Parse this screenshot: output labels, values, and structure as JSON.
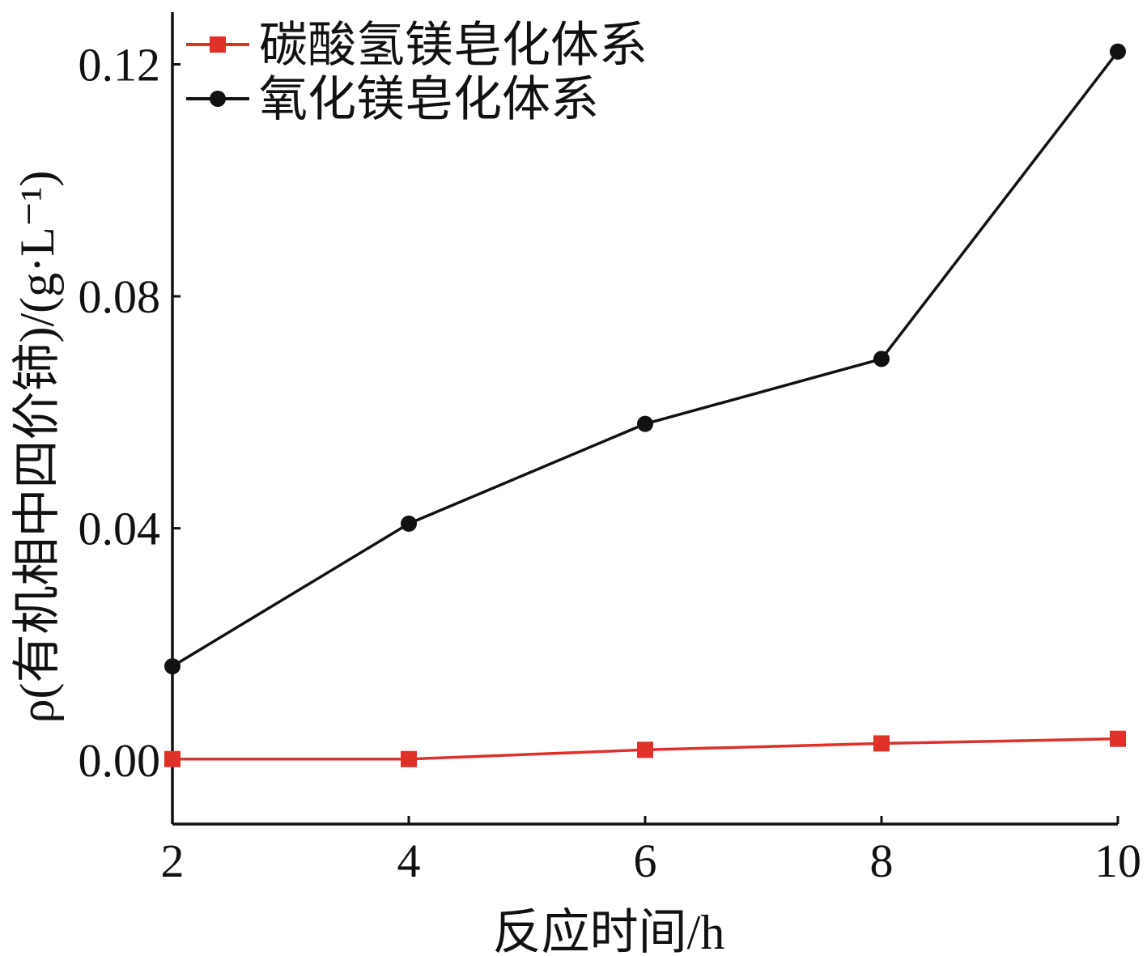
{
  "chart_data": {
    "type": "line",
    "xlabel": "反应时间/h",
    "ylabel": "ρ(有机相中四价铈)/(g·L⁻¹)",
    "x": [
      2,
      4,
      6,
      8,
      10
    ],
    "xlim": [
      2,
      10
    ],
    "ylim": [
      -0.011,
      0.129
    ],
    "xticks": [
      "2",
      "4",
      "6",
      "8",
      "10"
    ],
    "yticks": [
      "0.00",
      "0.04",
      "0.08",
      "0.12"
    ],
    "xtick_values": [
      2,
      4,
      6,
      8,
      10
    ],
    "ytick_values": [
      0.0,
      0.04,
      0.08,
      0.12
    ],
    "legend_position": "top-left",
    "grid": false,
    "series": [
      {
        "name": "碳酸氢镁皂化体系",
        "values": [
          0.0002,
          0.0002,
          0.0018,
          0.0029,
          0.0037
        ],
        "color": "#e0302a",
        "marker": "square"
      },
      {
        "name": "氧化镁皂化体系",
        "values": [
          0.0162,
          0.0408,
          0.058,
          0.0692,
          0.1222
        ],
        "color": "#111111",
        "marker": "circle"
      }
    ]
  }
}
